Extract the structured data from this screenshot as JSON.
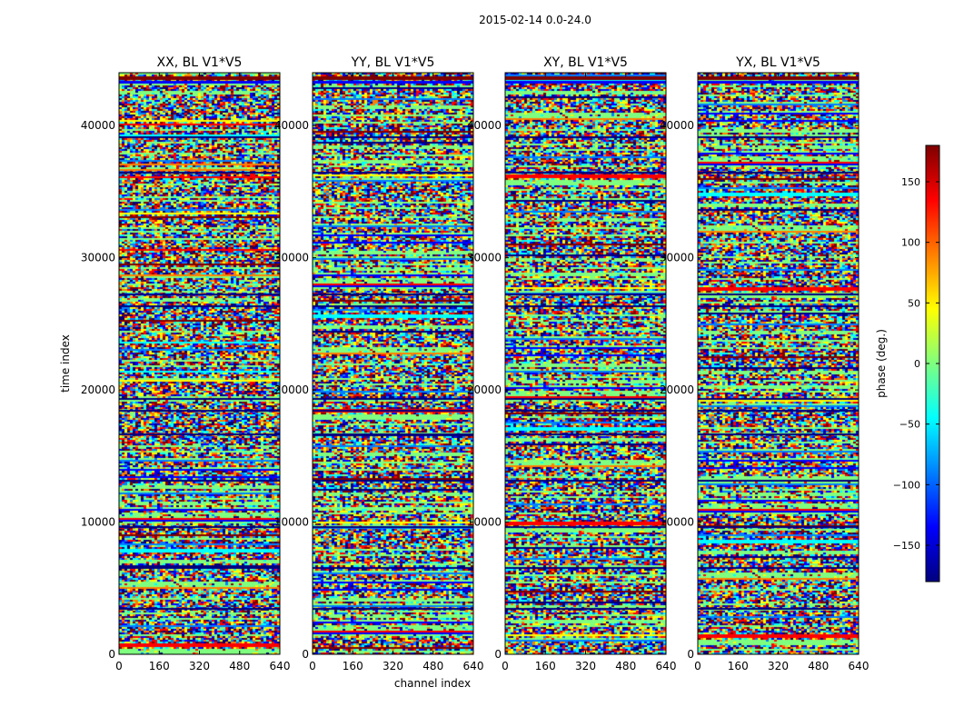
{
  "figure": {
    "suptitle": "2015-02-14 0.0-24.0",
    "xlabel": "channel index",
    "ylabel": "time index"
  },
  "chart_data": {
    "type": "heatmap",
    "title": "2015-02-14 0.0-24.0",
    "xlabel": "channel index",
    "ylabel": "time index",
    "xlim": [
      0,
      640
    ],
    "ylim": [
      0,
      44000
    ],
    "xticks": [
      0,
      160,
      320,
      480,
      640
    ],
    "yticks": [
      0,
      10000,
      20000,
      30000,
      40000
    ],
    "panels": [
      {
        "title": "XX, BL V1*V5",
        "pol": "XX"
      },
      {
        "title": "YY, BL V1*V5",
        "pol": "YY"
      },
      {
        "title": "XY, BL V1*V5",
        "pol": "XY"
      },
      {
        "title": "YX, BL V1*V5",
        "pol": "YX"
      }
    ],
    "colorbar": {
      "label": "phase (deg.)",
      "range": [
        -180,
        180
      ],
      "ticks": [
        150,
        100,
        50,
        0,
        -50,
        -100,
        -150
      ],
      "tick_labels": [
        "150",
        "100",
        "50",
        "0",
        "−50",
        "−100",
        "−150"
      ],
      "colormap": "jet"
    },
    "colors": {
      "jet": [
        "#00007f",
        "#0000ff",
        "#007fff",
        "#00ffff",
        "#7fff7f",
        "#ffff00",
        "#ff7f00",
        "#ff0000",
        "#7f0000"
      ]
    }
  }
}
